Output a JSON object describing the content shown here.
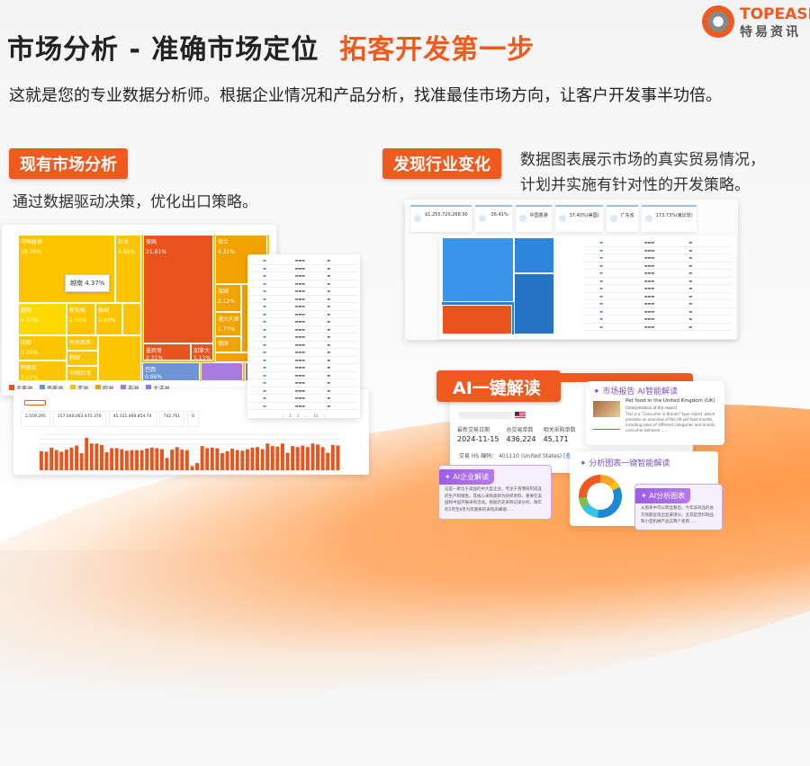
{
  "brand": {
    "name": "TOPEASE",
    "name_registered": "®",
    "name_cn": "特易资讯",
    "colors": {
      "orange": "#f05a1e",
      "gray": "#888888"
    }
  },
  "header": {
    "title_main": "市场分析 - 准确市场定位",
    "title_highlight": "拓客开发第一步",
    "subtitle": "这就是您的专业数据分析师。根据企业情况和产品分析，找准最佳市场方向，让客户开发事半功倍。"
  },
  "section_existing": {
    "badge": "现有市场分析",
    "text": "通过数据驱动决策，优化出口策略。"
  },
  "section_industry": {
    "badge": "发现行业变化",
    "text_line1": "数据图表展示市场的真实贸易情况，",
    "text_line2": "计划并实施有针对性的开发策略。"
  },
  "treemap": {
    "tooltip": "越南 4.37%",
    "cells": [
      {
        "name": "中国香港",
        "value": "18.76%",
        "color": "#fcc500"
      },
      {
        "name": "日本",
        "value": "4.89%",
        "color": "#fcc500"
      },
      {
        "name": "美国",
        "value": "21.61%",
        "color": "#e8541c"
      },
      {
        "name": "荷兰",
        "value": "4.31%",
        "color": "#f3a300"
      },
      {
        "name": "越南",
        "value": "4.37%",
        "color": "#ffd800"
      },
      {
        "name": "新加坡",
        "value": "2.56%",
        "color": "#fcc500"
      },
      {
        "name": "泰国",
        "value": "2.43%",
        "color": "#fcc500"
      },
      {
        "name": "英国",
        "value": "2.12%",
        "color": "#f3a300"
      },
      {
        "name": "澳大利亚",
        "value": "1.77%",
        "color": "#f3a300"
      },
      {
        "name": "印度",
        "value": "3.26%",
        "color": "#fcc500"
      },
      {
        "name": "阿联酋",
        "value": "3.07%",
        "color": "#fcc500"
      },
      {
        "name": "马来西亚",
        "value": "",
        "color": "#fcc500"
      },
      {
        "name": "韩国",
        "value": "",
        "color": "#fcc500"
      },
      {
        "name": "中国台湾",
        "value": "",
        "color": "#fcc500"
      },
      {
        "name": "墨西哥",
        "value": "2.31%",
        "color": "#e8541c"
      },
      {
        "name": "加拿大",
        "value": "1.13%",
        "color": "#e8541c"
      },
      {
        "name": "德国",
        "value": "",
        "color": "#f3a300"
      },
      {
        "name": "巴西",
        "value": "0.96%",
        "color": "#6f95d6"
      }
    ],
    "legend": [
      {
        "name": "北美洲",
        "color": "#e8541c"
      },
      {
        "name": "南美洲",
        "color": "#6f95d6"
      },
      {
        "name": "亚洲",
        "color": "#fcc500"
      },
      {
        "name": "欧洲",
        "color": "#f3a300"
      },
      {
        "name": "非洲",
        "color": "#a87be0"
      },
      {
        "name": "大洋洲",
        "color": "#7f7fe8"
      }
    ]
  },
  "chart_data": {
    "type": "bar",
    "title": "",
    "ylim": [
      0,
      7
    ],
    "values": [
      3.7,
      3.6,
      4.4,
      3.9,
      3.6,
      4.0,
      4.4,
      4.8,
      3.3,
      6.3,
      5.2,
      5.2,
      4.9,
      3.5,
      4.3,
      4.3,
      4.1,
      3.8,
      3.9,
      3.9,
      3.9,
      4.2,
      4.4,
      4.3,
      4.1,
      2.4,
      4.0,
      4.5,
      4.0,
      3.9,
      0.8,
      1.4,
      4.7,
      4.3,
      4.4,
      4.3,
      3.3,
      3.7,
      4.2,
      3.9,
      3.8,
      4.1,
      4.4,
      4.5,
      4.1,
      5.2,
      4.7,
      4.6,
      5.2,
      3.4,
      4.7,
      4.5,
      4.8,
      4.5,
      5.2,
      5.0,
      4.5,
      3.4,
      4.9,
      4.8
    ],
    "bar_color": "#e8541c",
    "stats": [
      "2,559,295",
      "157,040,063,475.376",
      "45,331,469,854.74",
      "742,761",
      "0"
    ]
  },
  "dashboard": {
    "stats": [
      "$1,255,720,268.00",
      "-36.41%",
      "中国香港",
      "37.40%(美国)",
      "广东省",
      "173.73%(東比较)"
    ]
  },
  "ai": {
    "badge": "AI一键解读",
    "company": {
      "labels": [
        "最新交易日期",
        "总交易单数",
        "相关采购单数"
      ],
      "values": [
        "2024-11-15",
        "436,224",
        "45,171"
      ],
      "hs_label": "交易 HS 编码：",
      "hs_value": "401110 (United States)",
      "more_link": "[查看更多]"
    },
    "report": {
      "title": "市场报告 AI智能解读",
      "heading": "Pet food in the United Kingdom (UK)",
      "sub": "[Interpretation of the report]",
      "body": "This is a \"Consumer & Brands\" type report, which provides an overview of the UK pet food market, including sales of different categories and brands, consumer behavior......"
    },
    "enterprise": {
      "tag": "AI企业解读",
      "body": "这是一家位于美国的中大型企业，专注于香港纺织成品的生产和销售。其核心采购类目为纺织原料，重要在美国和中国开展采购活动。根据历史采购记录分析，每年的5月至8月为其重要的采购高峰期......"
    },
    "chart": {
      "title": "分析图表一键智能解读",
      "tag": "AI分析图表",
      "body": "从图表中可以明显看出，今年该商品的总交易额呈现出显著增长，尤其是塑料制品和小型机械产品这两个类目......"
    }
  }
}
